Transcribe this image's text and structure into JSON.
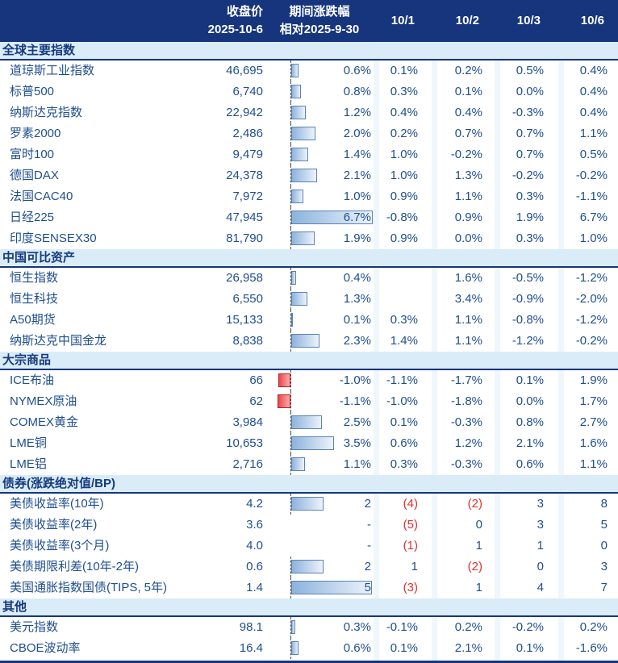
{
  "colors": {
    "header_bg": "#16357d",
    "section_bg": "#d9ecf8",
    "text_navy": "#1f4e8f",
    "negative_red": "#e03131",
    "bar_fill_start": "#8db3dd",
    "bar_fill_end": "#ecf3fb",
    "bar_border": "#5b83b6",
    "bar_negative": "#e5484d"
  },
  "chart_data": {
    "type": "table",
    "title": "",
    "header": {
      "close": [
        "收盘价",
        "2025-10-6"
      ],
      "period": [
        "期间涨跌幅",
        "相对2025-9-30"
      ],
      "days": [
        "10/1",
        "10/2",
        "10/3",
        "10/6"
      ]
    },
    "bar_axis_note": "horizontal data bars in period column; blue = positive, red = negative; bonds measured in BP",
    "sections": [
      {
        "title": "全球主要指数",
        "unit": "pct",
        "bar_scale": 15,
        "rows": [
          {
            "label": "道琼斯工业指数",
            "close": "46,695",
            "period": "0.6%",
            "bar": 0.6,
            "days": [
              "0.1%",
              "0.2%",
              "0.5%",
              "0.4%"
            ]
          },
          {
            "label": "标普500",
            "close": "6,740",
            "period": "0.8%",
            "bar": 0.8,
            "days": [
              "0.3%",
              "0.1%",
              "0.0%",
              "0.4%"
            ]
          },
          {
            "label": "纳斯达克指数",
            "close": "22,942",
            "period": "1.2%",
            "bar": 1.2,
            "days": [
              "0.4%",
              "0.4%",
              "-0.3%",
              "0.4%"
            ]
          },
          {
            "label": "罗素2000",
            "close": "2,486",
            "period": "2.0%",
            "bar": 2.0,
            "days": [
              "0.2%",
              "0.7%",
              "0.7%",
              "1.1%"
            ]
          },
          {
            "label": "富时100",
            "close": "9,479",
            "period": "1.4%",
            "bar": 1.4,
            "days": [
              "1.0%",
              "-0.2%",
              "0.7%",
              "0.5%"
            ]
          },
          {
            "label": "德国DAX",
            "close": "24,378",
            "period": "2.1%",
            "bar": 2.1,
            "days": [
              "1.0%",
              "1.3%",
              "-0.2%",
              "-0.2%"
            ]
          },
          {
            "label": "法国CAC40",
            "close": "7,972",
            "period": "1.0%",
            "bar": 1.0,
            "days": [
              "0.9%",
              "1.1%",
              "0.3%",
              "-1.1%"
            ]
          },
          {
            "label": "日经225",
            "close": "47,945",
            "period": "6.7%",
            "bar": 6.7,
            "days": [
              "-0.8%",
              "0.9%",
              "1.9%",
              "6.7%"
            ]
          },
          {
            "label": "印度SENSEX30",
            "close": "81,790",
            "period": "1.9%",
            "bar": 1.9,
            "days": [
              "0.9%",
              "0.0%",
              "0.3%",
              "1.0%"
            ]
          }
        ]
      },
      {
        "title": "中国可比资产",
        "unit": "pct",
        "bar_scale": 15,
        "rows": [
          {
            "label": "恒生指数",
            "close": "26,958",
            "period": "0.4%",
            "bar": 0.4,
            "days": [
              "",
              "1.6%",
              "-0.5%",
              "-1.2%"
            ]
          },
          {
            "label": "恒生科技",
            "close": "6,550",
            "period": "1.3%",
            "bar": 1.3,
            "days": [
              "",
              "3.4%",
              "-0.9%",
              "-2.0%"
            ]
          },
          {
            "label": "A50期货",
            "close": "15,133",
            "period": "0.1%",
            "bar": 0.1,
            "days": [
              "0.3%",
              "1.1%",
              "-0.8%",
              "-1.2%"
            ]
          },
          {
            "label": "纳斯达克中国金龙",
            "close": "8,838",
            "period": "2.3%",
            "bar": 2.3,
            "days": [
              "1.4%",
              "1.1%",
              "-1.2%",
              "-0.2%"
            ]
          }
        ]
      },
      {
        "title": "大宗商品",
        "unit": "pct",
        "bar_scale": 15,
        "rows": [
          {
            "label": "ICE布油",
            "close": "66",
            "period": "-1.0%",
            "bar": -1.0,
            "days": [
              "-1.1%",
              "-1.7%",
              "0.1%",
              "1.9%"
            ]
          },
          {
            "label": "NYMEX原油",
            "close": "62",
            "period": "-1.1%",
            "bar": -1.1,
            "days": [
              "-1.0%",
              "-1.8%",
              "0.0%",
              "1.7%"
            ]
          },
          {
            "label": "COMEX黄金",
            "close": "3,984",
            "period": "2.5%",
            "bar": 2.5,
            "days": [
              "0.1%",
              "-0.3%",
              "0.8%",
              "2.7%"
            ]
          },
          {
            "label": "LME铜",
            "close": "10,653",
            "period": "3.5%",
            "bar": 3.5,
            "days": [
              "0.6%",
              "1.2%",
              "2.1%",
              "1.6%"
            ]
          },
          {
            "label": "LME铝",
            "close": "2,716",
            "period": "1.1%",
            "bar": 1.1,
            "days": [
              "0.3%",
              "-0.3%",
              "0.6%",
              "1.1%"
            ]
          }
        ]
      },
      {
        "title": "债券(涨跌绝对值/BP)",
        "unit": "bp",
        "bar_scale": 20,
        "rows": [
          {
            "label": "美债收益率(10年)",
            "close": "4.2",
            "period": "2",
            "bar": 2,
            "days": [
              "(4)",
              "(2)",
              "3",
              "8"
            ]
          },
          {
            "label": "美债收益率(2年)",
            "close": "3.6",
            "period": "-",
            "bar": null,
            "days": [
              "(5)",
              "0",
              "3",
              "5"
            ]
          },
          {
            "label": "美债收益率(3个月)",
            "close": "4.0",
            "period": "-",
            "bar": null,
            "days": [
              "(1)",
              "1",
              "1",
              "0"
            ]
          },
          {
            "label": "美债期限利差(10年-2年)",
            "close": "0.6",
            "period": "2",
            "bar": 2,
            "days": [
              "1",
              "(2)",
              "0",
              "3"
            ]
          },
          {
            "label": "美国通胀指数国债(TIPS, 5年)",
            "close": "1.4",
            "period": "5",
            "bar": 5,
            "days": [
              "(3)",
              "1",
              "4",
              "7"
            ]
          }
        ]
      },
      {
        "title": "其他",
        "unit": "pct",
        "bar_scale": 15,
        "rows": [
          {
            "label": "美元指数",
            "close": "98.1",
            "period": "0.3%",
            "bar": 0.3,
            "days": [
              "-0.1%",
              "0.2%",
              "-0.2%",
              "0.2%"
            ]
          },
          {
            "label": "CBOE波动率",
            "close": "16.4",
            "period": "0.6%",
            "bar": 0.6,
            "days": [
              "0.1%",
              "2.1%",
              "0.1%",
              "-1.6%"
            ]
          }
        ]
      }
    ]
  }
}
